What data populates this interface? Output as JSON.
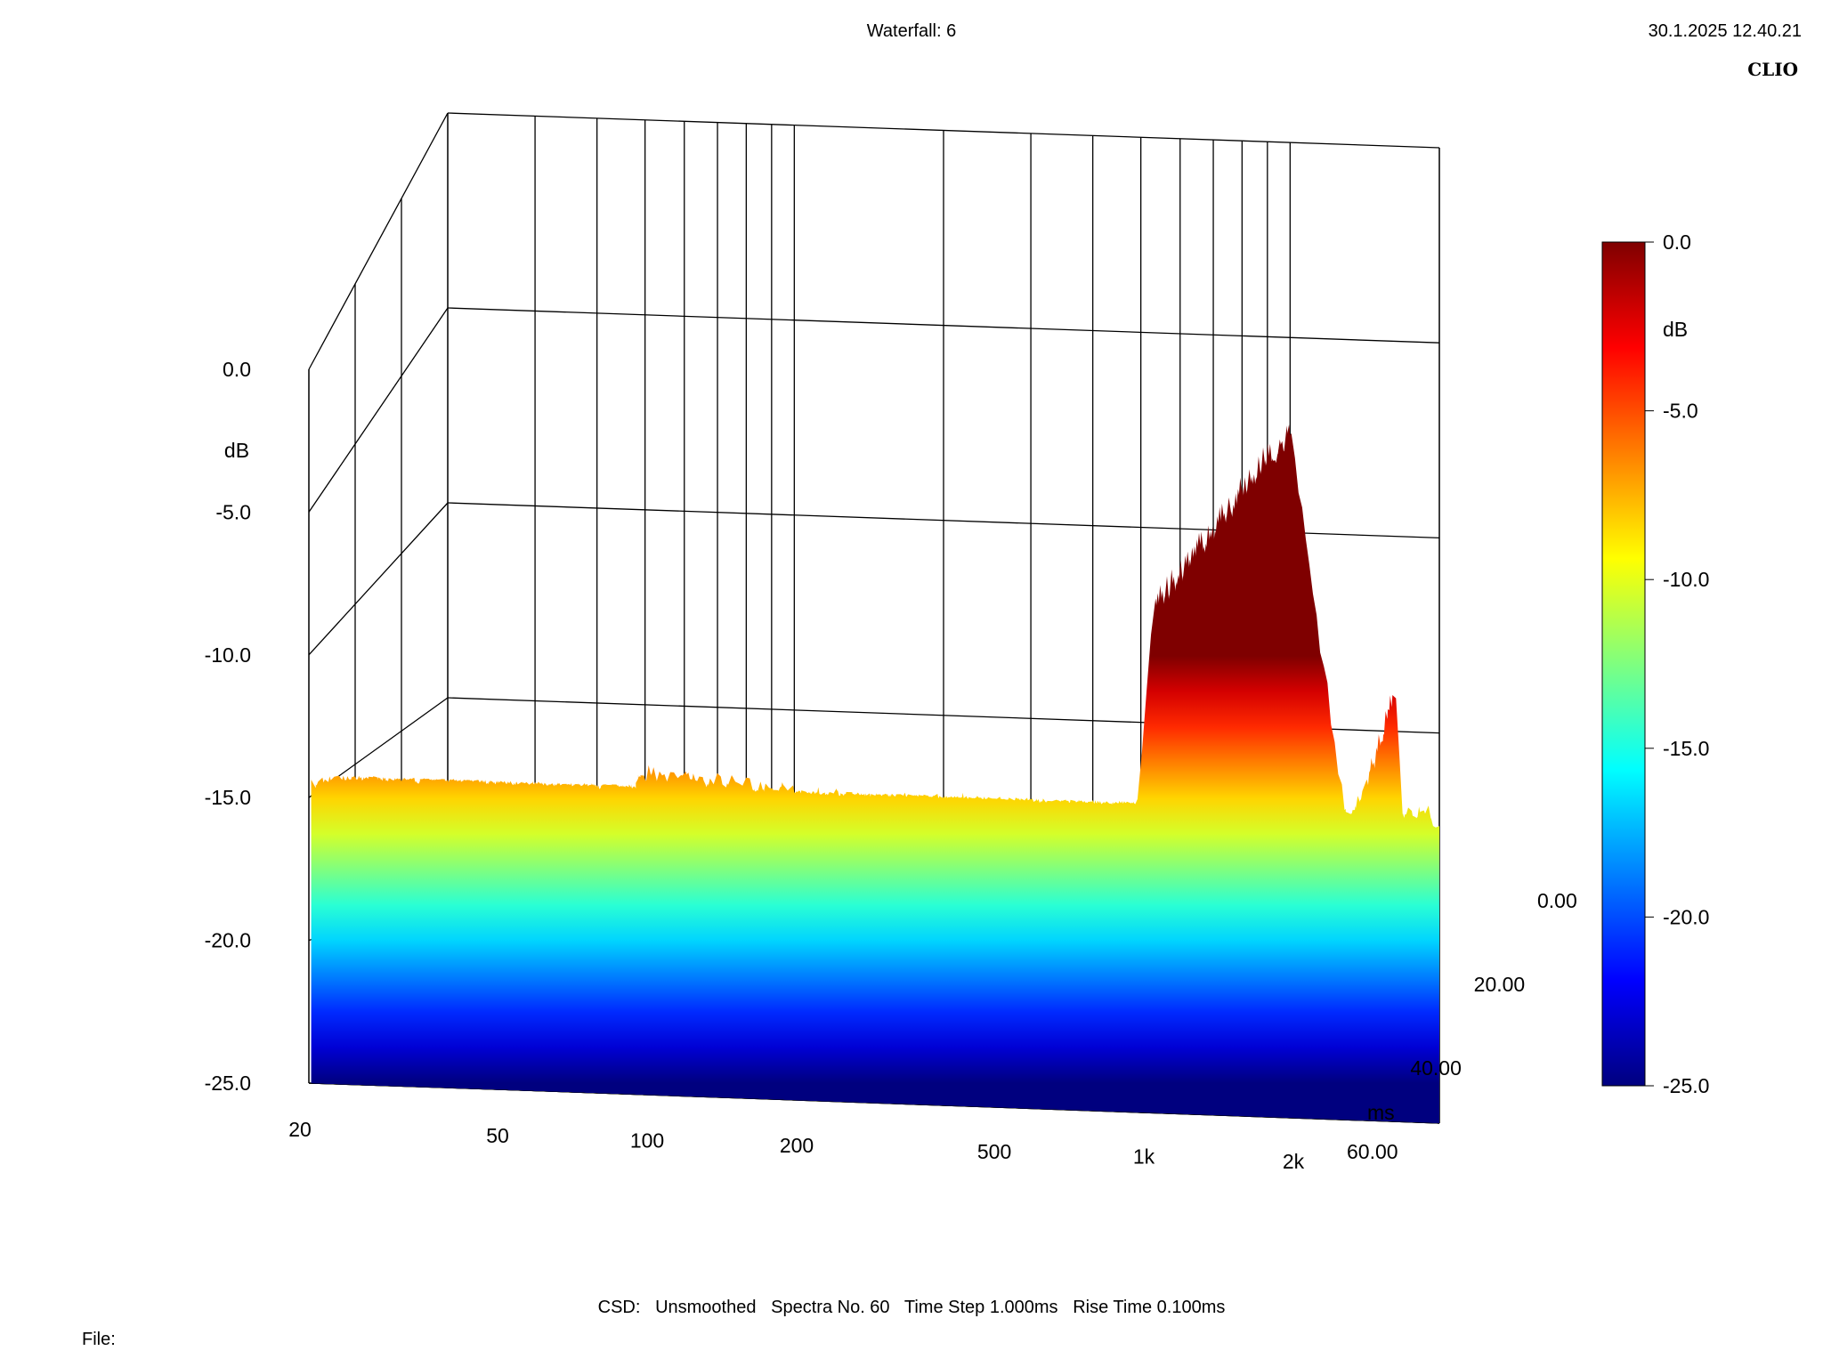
{
  "header": {
    "title": "Waterfall: 6",
    "timestamp": "30.1.2025 12.40.21",
    "brand": "CLIO"
  },
  "footer": {
    "info": "CSD:   Unsmoothed   Spectra No. 60   Time Step 1.000ms   Rise Time 0.100ms",
    "file_label": "File:"
  },
  "chart_data": {
    "type": "waterfall",
    "title": "Waterfall: 6",
    "x_axis": {
      "scale": "log",
      "range": [
        20,
        2000
      ],
      "ticks": [
        20,
        50,
        100,
        200,
        500,
        1000,
        2000
      ],
      "tick_labels": [
        "20",
        "50",
        "100",
        "200",
        "500",
        "1k",
        "2k"
      ]
    },
    "y_axis": {
      "label": "dB",
      "range": [
        -25,
        0
      ],
      "ticks": [
        0,
        -5,
        -10,
        -15,
        -20,
        -25
      ],
      "tick_labels": [
        "0.0",
        "-5.0",
        "-10.0",
        "-15.0",
        "-20.0",
        "-25.0"
      ]
    },
    "z_axis": {
      "label": "ms",
      "range": [
        0,
        60
      ],
      "ticks": [
        0,
        20,
        40,
        60
      ],
      "tick_labels": [
        "0.00",
        "20.00",
        "40.00",
        "60.00"
      ]
    },
    "colorbar": {
      "label": "dB",
      "range": [
        -25,
        0
      ],
      "ticks": [
        0,
        -5,
        -10,
        -15,
        -20,
        -25
      ],
      "tick_labels": [
        "0.0",
        "-5.0",
        "-10.0",
        "-15.0",
        "-20.0",
        "-25.0"
      ],
      "colors": [
        "#00007f",
        "#0000ff",
        "#007fff",
        "#00ffff",
        "#7fff7f",
        "#ffff00",
        "#ff7f00",
        "#ff0000",
        "#7f0000"
      ]
    },
    "spectra_count": 60,
    "time_step_ms": 1.0,
    "rise_time_ms": 0.1,
    "first_spectrum": {
      "frequency_hz": [
        50,
        70,
        100,
        150,
        200,
        300,
        500,
        700,
        850,
        1000,
        1150,
        1300,
        1500,
        1700,
        2000
      ],
      "level_db": [
        -13.8,
        -14.0,
        -14.3,
        -14.5,
        -14.4,
        -14.6,
        -14.6,
        -14.6,
        -14.8,
        -0.5,
        -8.5,
        -14.5,
        -13.8,
        -14.2,
        -14.3
      ]
    },
    "peaks": [
      {
        "frequency_hz": 1000,
        "level_db": -0.5
      },
      {
        "frequency_hz": 1180,
        "level_db": -8.8
      },
      {
        "frequency_hz": 1620,
        "level_db": -9.8
      }
    ]
  }
}
